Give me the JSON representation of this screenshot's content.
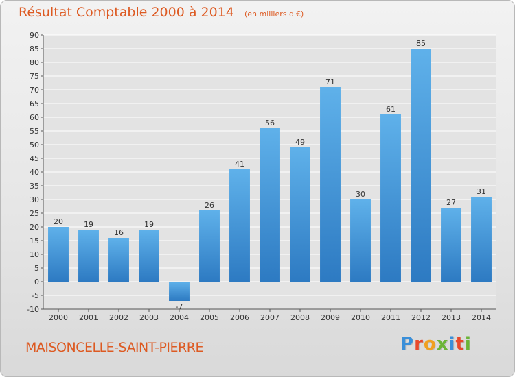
{
  "title": "Résultat Comptable 2000 à 2014",
  "subtitle": "(en milliers d'€)",
  "place_name": "MAISONCELLE-SAINT-PIERRE",
  "logo": {
    "text": "Proxiti",
    "letter_colors": [
      "#3a8fd9",
      "#e8482b",
      "#f0a020",
      "#6bb536",
      "#3a8fd9",
      "#e8482b",
      "#6bb536"
    ]
  },
  "colors": {
    "bar_top": "#5fb1ea",
    "bar_bottom": "#2d7ac2",
    "text_accent": "#dd5a22",
    "grid": "#ffffff"
  },
  "chart_data": {
    "type": "bar",
    "categories": [
      "2000",
      "2001",
      "2002",
      "2003",
      "2004",
      "2005",
      "2006",
      "2007",
      "2008",
      "2009",
      "2010",
      "2011",
      "2012",
      "2013",
      "2014"
    ],
    "values": [
      20,
      19,
      16,
      19,
      -7,
      26,
      41,
      56,
      49,
      71,
      30,
      61,
      85,
      27,
      31
    ],
    "ylim": [
      -10,
      90
    ],
    "yticks": [
      -10,
      -5,
      0,
      5,
      10,
      15,
      20,
      25,
      30,
      35,
      40,
      45,
      50,
      55,
      60,
      65,
      70,
      75,
      80,
      85,
      90
    ],
    "grid": true,
    "legend": "none"
  }
}
